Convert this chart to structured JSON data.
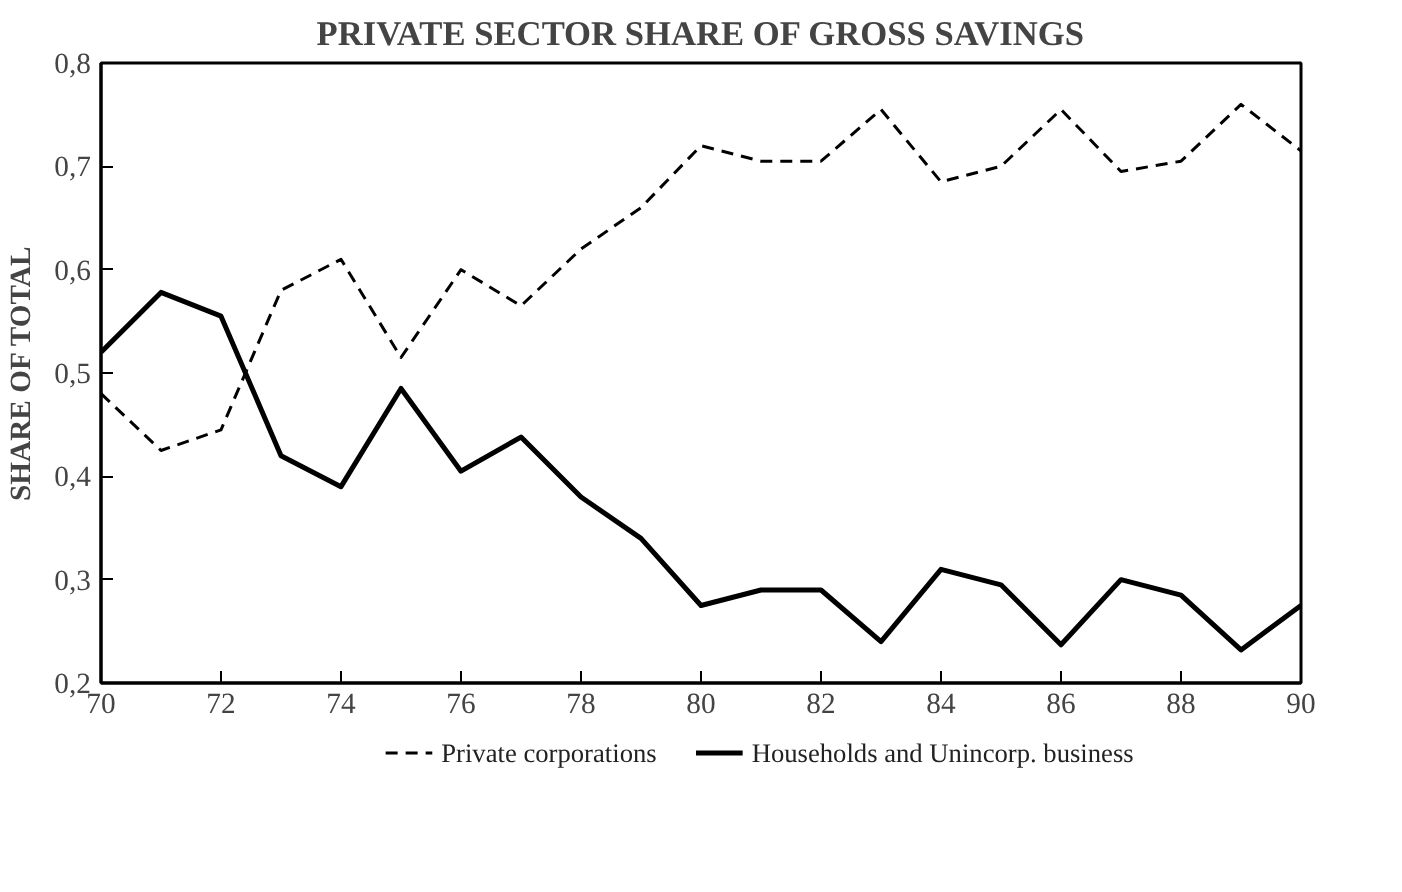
{
  "chart_data": {
    "type": "line",
    "title": "PRIVATE SECTOR SHARE OF GROSS SAVINGS",
    "ylabel": "SHARE OF TOTAL",
    "x": [
      70,
      71,
      72,
      73,
      74,
      75,
      76,
      77,
      78,
      79,
      80,
      81,
      82,
      83,
      84,
      85,
      86,
      87,
      88,
      89,
      90
    ],
    "series": [
      {
        "name": "Private corporations",
        "color": "#000000",
        "line_style": "dashed",
        "values": [
          0.48,
          0.425,
          0.445,
          0.58,
          0.61,
          0.515,
          0.6,
          0.565,
          0.62,
          0.66,
          0.72,
          0.705,
          0.705,
          0.755,
          0.685,
          0.7,
          0.755,
          0.695,
          0.705,
          0.76,
          0.715
        ]
      },
      {
        "name": "Households and Unincorp. business",
        "color": "#000000",
        "line_style": "solid",
        "values": [
          0.52,
          0.578,
          0.555,
          0.42,
          0.39,
          0.485,
          0.405,
          0.438,
          0.38,
          0.34,
          0.275,
          0.29,
          0.29,
          0.24,
          0.31,
          0.295,
          0.237,
          0.3,
          0.285,
          0.232,
          0.275
        ]
      }
    ],
    "xlim": [
      70,
      90
    ],
    "xticks": [
      70,
      72,
      74,
      76,
      78,
      80,
      82,
      84,
      86,
      88,
      90
    ],
    "ylim": [
      0.2,
      0.8
    ],
    "yticks": [
      {
        "value": 0.2,
        "label": "0,2"
      },
      {
        "value": 0.3,
        "label": "0,3"
      },
      {
        "value": 0.4,
        "label": "0,4"
      },
      {
        "value": 0.5,
        "label": "0,5"
      },
      {
        "value": 0.6,
        "label": "0,6"
      },
      {
        "value": 0.7,
        "label": "0,7"
      },
      {
        "value": 0.8,
        "label": "0,8"
      }
    ],
    "grid": false,
    "legend": "bottom"
  }
}
